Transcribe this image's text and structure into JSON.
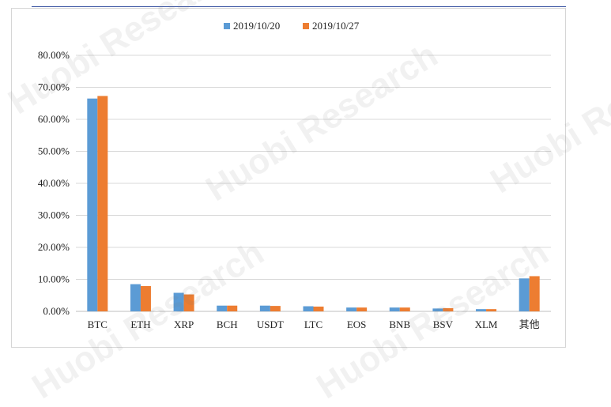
{
  "watermark": {
    "brand": "Huobi Research"
  },
  "colors": {
    "series1": "#5b9bd5",
    "series2": "#ed7d31",
    "grid": "#d9d9d9",
    "axis": "#bfbfbf"
  },
  "chart_data": {
    "type": "bar",
    "categories": [
      "BTC",
      "ETH",
      "XRP",
      "BCH",
      "USDT",
      "LTC",
      "EOS",
      "BNB",
      "BSV",
      "XLM",
      "其他"
    ],
    "series": [
      {
        "name": "2019/10/20",
        "values": [
          66.5,
          8.5,
          5.8,
          1.8,
          1.8,
          1.6,
          1.2,
          1.2,
          0.9,
          0.7,
          10.3
        ]
      },
      {
        "name": "2019/10/27",
        "values": [
          67.3,
          7.9,
          5.3,
          1.8,
          1.7,
          1.5,
          1.2,
          1.2,
          1.0,
          0.7,
          11.0
        ]
      }
    ],
    "ylim": [
      0,
      80
    ],
    "yticks": [
      "0.00%",
      "10.00%",
      "20.00%",
      "30.00%",
      "40.00%",
      "50.00%",
      "60.00%",
      "70.00%",
      "80.00%"
    ],
    "ytick_values": [
      0,
      10,
      20,
      30,
      40,
      50,
      60,
      70,
      80
    ],
    "grid": true,
    "legend_position": "top-center"
  }
}
